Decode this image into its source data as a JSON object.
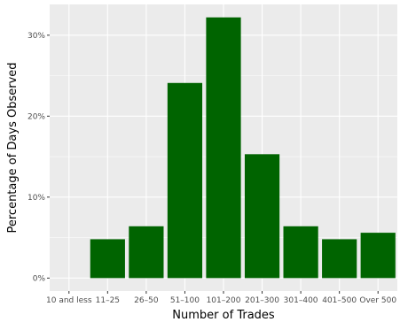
{
  "chart_data": {
    "type": "bar",
    "title": "",
    "xlabel": "Number of Trades",
    "ylabel": "Percentage of Days Observed",
    "categories": [
      "10 and less",
      "11–25",
      "26–50",
      "51–100",
      "101–200",
      "201–300",
      "301–400",
      "401–500",
      "Over 500"
    ],
    "values": [
      0.0,
      4.8,
      6.4,
      24.1,
      32.2,
      15.3,
      6.4,
      4.8,
      5.6
    ],
    "ylim": [
      -1.6,
      33.8
    ],
    "yticks": [
      0,
      10,
      20,
      30
    ],
    "ytick_labels": [
      "0%",
      "10%",
      "20%",
      "30%"
    ],
    "grid": true,
    "colors": {
      "bar": "#006400",
      "panel_background": "#ebebeb",
      "gridline": "#ffffff"
    }
  }
}
